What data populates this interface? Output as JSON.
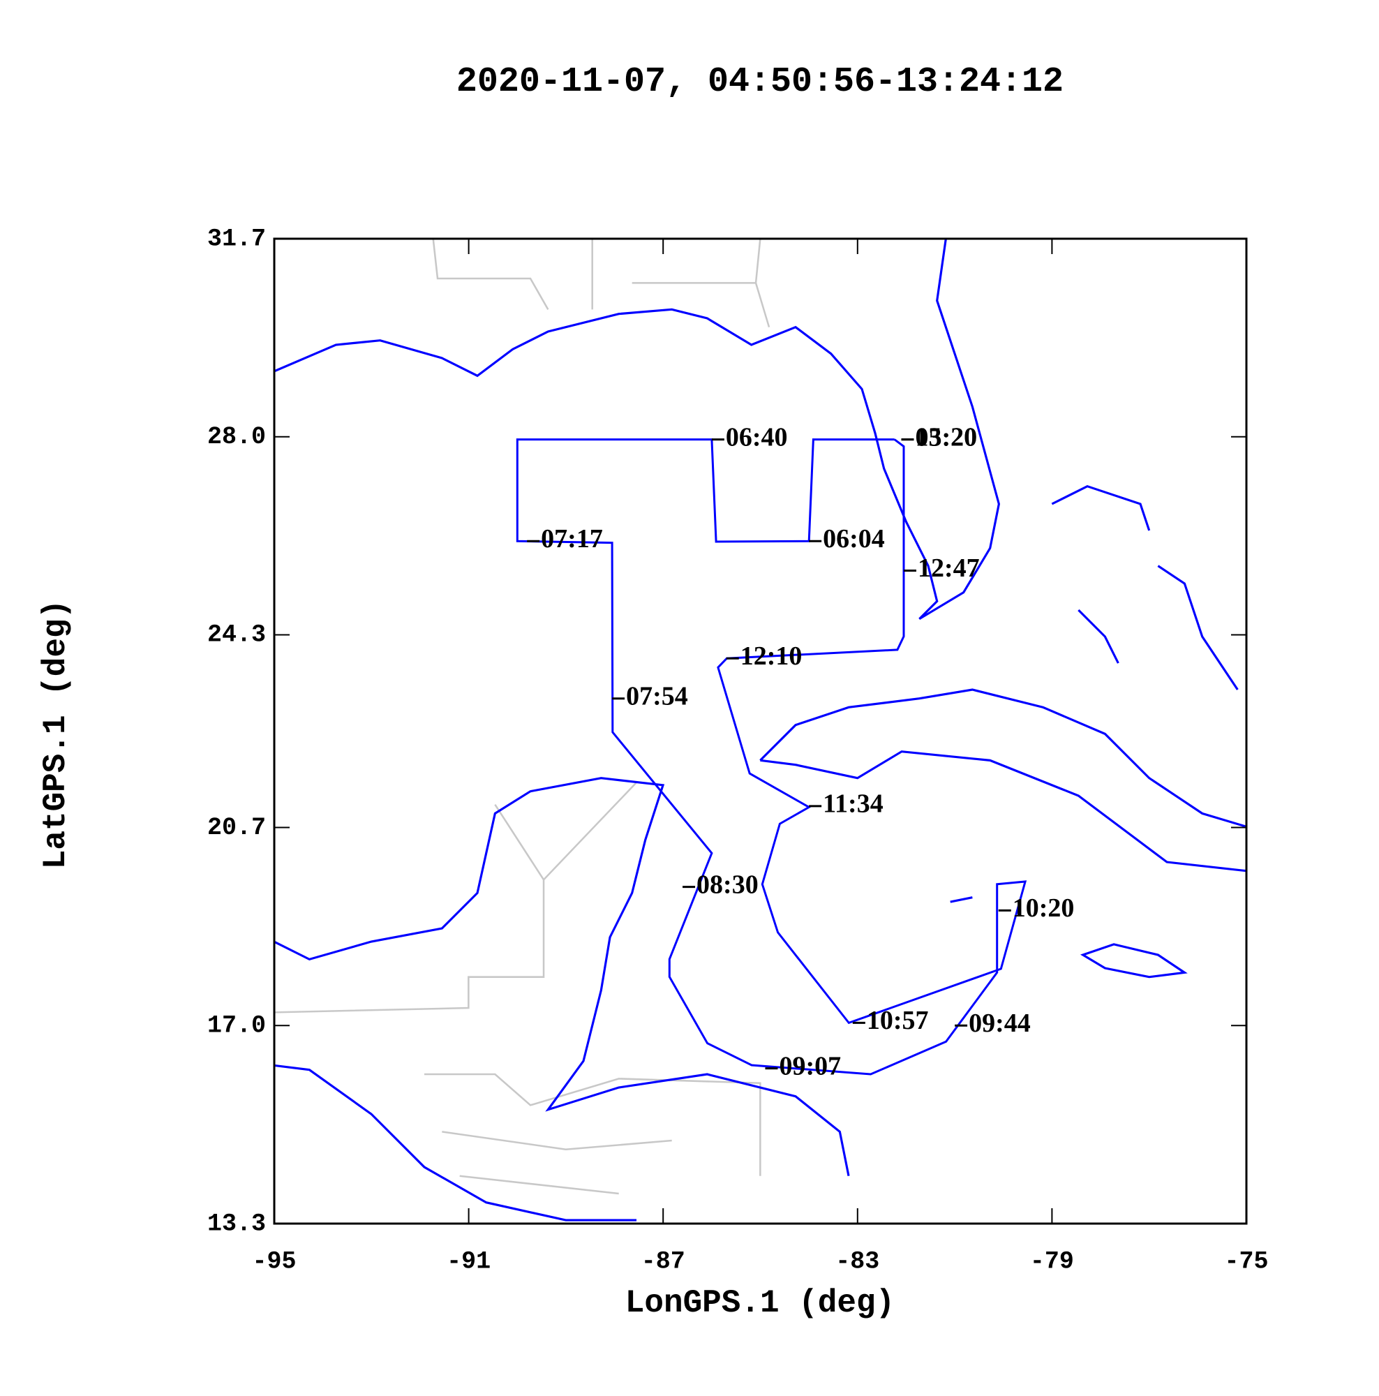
{
  "chart_data": {
    "type": "line",
    "title": "2020-11-07, 04:50:56-13:24:12",
    "xlabel": "LonGPS.1 (deg)",
    "ylabel": "LatGPS.1 (deg)",
    "xlim": [
      -95,
      -75
    ],
    "ylim": [
      13.3,
      31.7
    ],
    "xticks": [
      -95,
      -91,
      -87,
      -83,
      -79,
      -75
    ],
    "yticks": [
      {
        "value": 31.7,
        "label": "31.7"
      },
      {
        "value": 28,
        "label": "28.0"
      },
      {
        "value": 24.3,
        "label": "24.3"
      },
      {
        "value": 20.7,
        "label": "20.7"
      },
      {
        "value": 17,
        "label": "17.0"
      },
      {
        "value": 13.3,
        "label": "13.3"
      }
    ],
    "color": "#0000ff",
    "x": [
      -82.24,
      -83.91,
      -84.0,
      -85.91,
      -86.0,
      -90.0,
      -90.0,
      -88.05,
      -88.04,
      -86.0,
      -86.87,
      -86.87,
      -86.09,
      -85.18,
      -82.73,
      -81.18,
      -80.13,
      -80.13,
      -79.55,
      -80.05,
      -83.18,
      -84.64,
      -84.96,
      -84.6,
      -84.0,
      -85.22,
      -85.87,
      -85.69,
      -82.18,
      -82.05,
      -82.05,
      -82.24
    ],
    "y": [
      27.95,
      27.95,
      26.05,
      26.04,
      27.95,
      27.95,
      26.05,
      26.02,
      22.48,
      20.22,
      18.24,
      17.91,
      16.67,
      16.26,
      16.09,
      16.7,
      17.99,
      19.64,
      19.69,
      18.06,
      17.05,
      18.74,
      19.64,
      20.77,
      21.08,
      21.71,
      23.69,
      23.86,
      24.02,
      24.27,
      27.82,
      27.95
    ],
    "annotations": [
      {
        "text": "05:20",
        "x": -82.1,
        "y": 27.95
      },
      {
        "text": "13:20",
        "x": -82.1,
        "y": 27.95
      },
      {
        "text": "06:40",
        "x": -86.0,
        "y": 27.95
      },
      {
        "text": "06:04",
        "x": -84.0,
        "y": 26.05
      },
      {
        "text": "07:17",
        "x": -89.8,
        "y": 26.05
      },
      {
        "text": "12:47",
        "x": -82.05,
        "y": 25.5
      },
      {
        "text": "12:10",
        "x": -85.7,
        "y": 23.86
      },
      {
        "text": "07:54",
        "x": -88.05,
        "y": 23.11
      },
      {
        "text": "11:34",
        "x": -84.0,
        "y": 21.1
      },
      {
        "text": "08:30",
        "x": -86.6,
        "y": 19.59
      },
      {
        "text": "10:20",
        "x": -80.1,
        "y": 19.15
      },
      {
        "text": "10:57",
        "x": -83.1,
        "y": 17.05
      },
      {
        "text": "09:44",
        "x": -81.0,
        "y": 17.0
      },
      {
        "text": "09:07",
        "x": -84.9,
        "y": 16.2
      }
    ]
  }
}
